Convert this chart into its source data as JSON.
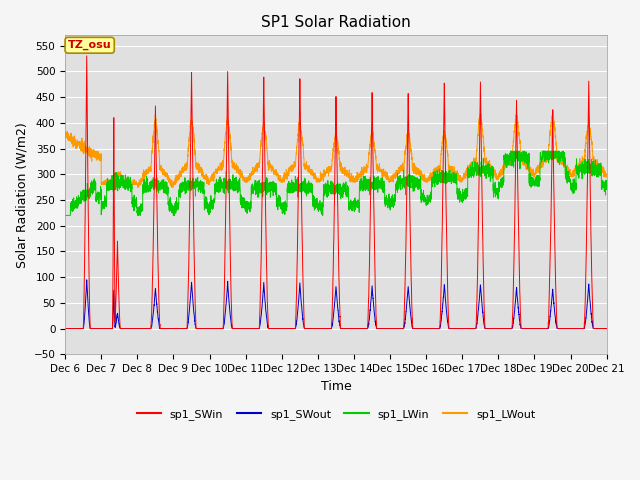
{
  "title": "SP1 Solar Radiation",
  "xlabel": "Time",
  "ylabel": "Solar Radiation (W/m2)",
  "ylim": [
    -50,
    570
  ],
  "yticks": [
    -50,
    0,
    50,
    100,
    150,
    200,
    250,
    300,
    350,
    400,
    450,
    500,
    550
  ],
  "x_tick_labels": [
    "Dec 6",
    "Dec 7",
    "Dec 8",
    "Dec 9",
    "Dec 10",
    "Dec 11",
    "Dec 12",
    "Dec 13",
    "Dec 14",
    "Dec 15",
    "Dec 16",
    "Dec 17",
    "Dec 18",
    "Dec 19",
    "Dec 20",
    "Dec 21"
  ],
  "colors": {
    "SWin": "#ff0000",
    "SWout": "#0000cc",
    "LWin": "#00cc00",
    "LWout": "#ff9900"
  },
  "legend_labels": [
    "sp1_SWin",
    "sp1_SWout",
    "sp1_LWin",
    "sp1_LWout"
  ],
  "annotation_text": "TZ_osu",
  "annotation_color": "#cc0000",
  "annotation_bg": "#ffff99",
  "annotation_border": "#aa8800",
  "bg_color": "#e0e0e0",
  "grid_color": "#ffffff",
  "title_fontsize": 11,
  "axis_fontsize": 9,
  "tick_fontsize": 7.5
}
